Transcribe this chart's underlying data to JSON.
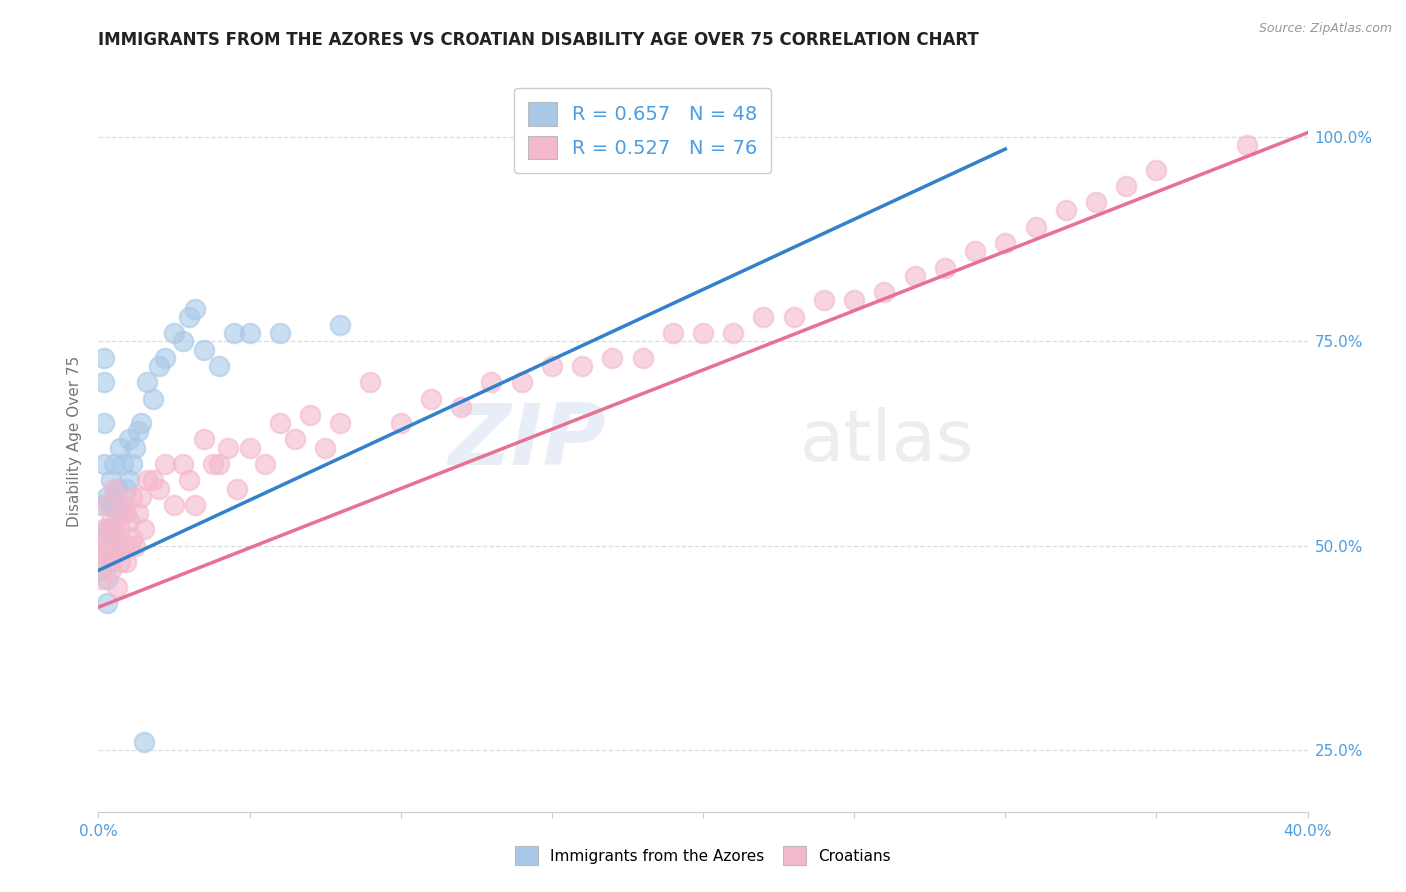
{
  "title": "IMMIGRANTS FROM THE AZORES VS CROATIAN DISABILITY AGE OVER 75 CORRELATION CHART",
  "source": "Source: ZipAtlas.com",
  "ylabel": "Disability Age Over 75",
  "xlim": [
    0.0,
    0.4
  ],
  "ylim": [
    0.175,
    1.08
  ],
  "xtick_positions": [
    0.0,
    0.05,
    0.1,
    0.15,
    0.2,
    0.25,
    0.3,
    0.35,
    0.4
  ],
  "ytick_positions": [
    0.25,
    0.5,
    0.75,
    1.0
  ],
  "ytick_labels": [
    "25.0%",
    "50.0%",
    "75.0%",
    "100.0%"
  ],
  "blue_R": 0.657,
  "blue_N": 48,
  "pink_R": 0.527,
  "pink_N": 76,
  "blue_color": "#a8c8e8",
  "pink_color": "#f4b8cc",
  "blue_line_color": "#3380cc",
  "pink_line_color": "#e87090",
  "legend_label_blue": "Immigrants from the Azores",
  "legend_label_pink": "Croatians",
  "watermark_zip": "ZIP",
  "watermark_atlas": "atlas",
  "blue_line_x0": 0.0,
  "blue_line_x1": 0.3,
  "blue_line_y0": 0.47,
  "blue_line_y1": 0.985,
  "pink_line_x0": 0.0,
  "pink_line_x1": 0.4,
  "pink_line_y0": 0.425,
  "pink_line_y1": 1.005,
  "blue_scatter_x": [
    0.001,
    0.001,
    0.001,
    0.002,
    0.002,
    0.002,
    0.002,
    0.003,
    0.003,
    0.003,
    0.003,
    0.003,
    0.004,
    0.004,
    0.004,
    0.005,
    0.005,
    0.005,
    0.006,
    0.006,
    0.006,
    0.007,
    0.007,
    0.008,
    0.008,
    0.009,
    0.01,
    0.01,
    0.011,
    0.012,
    0.013,
    0.014,
    0.016,
    0.018,
    0.02,
    0.022,
    0.025,
    0.028,
    0.03,
    0.032,
    0.035,
    0.04,
    0.045,
    0.05,
    0.06,
    0.08,
    0.015,
    0.004
  ],
  "blue_scatter_y": [
    0.51,
    0.55,
    0.47,
    0.73,
    0.7,
    0.65,
    0.6,
    0.56,
    0.52,
    0.49,
    0.46,
    0.43,
    0.55,
    0.52,
    0.58,
    0.51,
    0.56,
    0.6,
    0.54,
    0.57,
    0.5,
    0.55,
    0.62,
    0.54,
    0.6,
    0.57,
    0.58,
    0.63,
    0.6,
    0.62,
    0.64,
    0.65,
    0.7,
    0.68,
    0.72,
    0.73,
    0.76,
    0.75,
    0.78,
    0.79,
    0.74,
    0.72,
    0.76,
    0.76,
    0.76,
    0.77,
    0.26,
    0.48
  ],
  "pink_scatter_x": [
    0.001,
    0.001,
    0.002,
    0.002,
    0.003,
    0.003,
    0.003,
    0.004,
    0.004,
    0.005,
    0.005,
    0.005,
    0.006,
    0.006,
    0.007,
    0.007,
    0.008,
    0.008,
    0.009,
    0.009,
    0.01,
    0.01,
    0.011,
    0.011,
    0.012,
    0.013,
    0.014,
    0.015,
    0.016,
    0.018,
    0.02,
    0.022,
    0.025,
    0.028,
    0.03,
    0.032,
    0.035,
    0.038,
    0.04,
    0.043,
    0.046,
    0.05,
    0.055,
    0.06,
    0.065,
    0.07,
    0.075,
    0.08,
    0.09,
    0.1,
    0.11,
    0.12,
    0.13,
    0.14,
    0.15,
    0.16,
    0.17,
    0.18,
    0.19,
    0.2,
    0.21,
    0.22,
    0.23,
    0.24,
    0.25,
    0.26,
    0.27,
    0.28,
    0.29,
    0.3,
    0.31,
    0.32,
    0.33,
    0.34,
    0.35,
    0.38
  ],
  "pink_scatter_y": [
    0.5,
    0.46,
    0.52,
    0.49,
    0.48,
    0.51,
    0.55,
    0.47,
    0.53,
    0.49,
    0.52,
    0.57,
    0.5,
    0.45,
    0.52,
    0.48,
    0.5,
    0.55,
    0.48,
    0.54,
    0.5,
    0.53,
    0.51,
    0.56,
    0.5,
    0.54,
    0.56,
    0.52,
    0.58,
    0.58,
    0.57,
    0.6,
    0.55,
    0.6,
    0.58,
    0.55,
    0.63,
    0.6,
    0.6,
    0.62,
    0.57,
    0.62,
    0.6,
    0.65,
    0.63,
    0.66,
    0.62,
    0.65,
    0.7,
    0.65,
    0.68,
    0.67,
    0.7,
    0.7,
    0.72,
    0.72,
    0.73,
    0.73,
    0.76,
    0.76,
    0.76,
    0.78,
    0.78,
    0.8,
    0.8,
    0.81,
    0.83,
    0.84,
    0.86,
    0.87,
    0.89,
    0.91,
    0.92,
    0.94,
    0.96,
    0.99
  ],
  "background_color": "#ffffff",
  "grid_color": "#dddddd",
  "title_fontsize": 12,
  "label_fontsize": 11,
  "tick_fontsize": 11,
  "tick_color": "#4d9de0",
  "title_color": "#222222",
  "ylabel_color": "#777777"
}
